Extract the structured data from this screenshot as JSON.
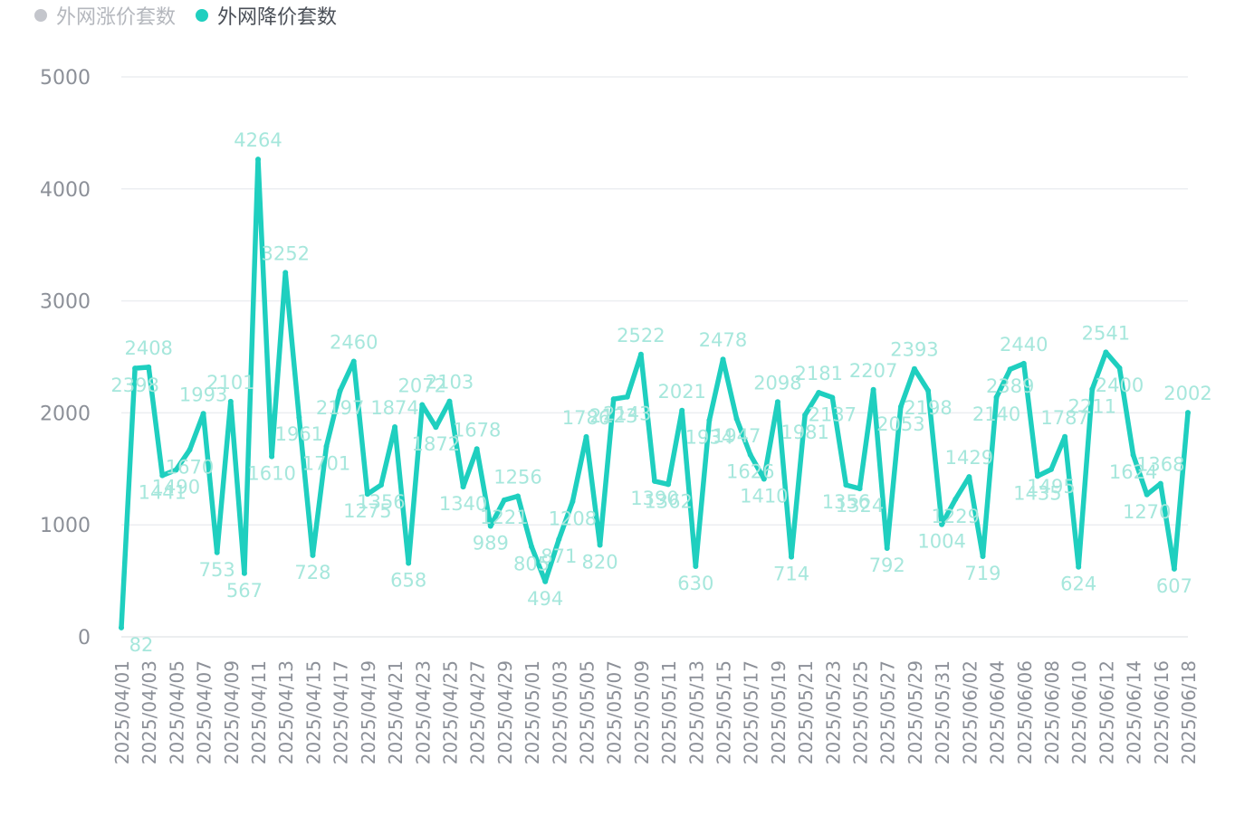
{
  "legend": [
    {
      "label": "外网涨价套数",
      "color": "#c4c6cc",
      "active": false
    },
    {
      "label": "外网降价套数",
      "color": "#1fcfbf",
      "active": true
    }
  ],
  "chart_data": {
    "type": "line",
    "title": "",
    "xlabel": "",
    "ylabel": "",
    "ylim": [
      0,
      5000
    ],
    "yticks": [
      0,
      1000,
      2000,
      3000,
      4000,
      5000
    ],
    "grid": true,
    "legend_position": "top-left",
    "x": [
      "2025/04/01",
      "2025/04/02",
      "2025/04/03",
      "2025/04/04",
      "2025/04/05",
      "2025/04/06",
      "2025/04/07",
      "2025/04/08",
      "2025/04/09",
      "2025/04/10",
      "2025/04/11",
      "2025/04/12",
      "2025/04/13",
      "2025/04/14",
      "2025/04/15",
      "2025/04/16",
      "2025/04/17",
      "2025/04/18",
      "2025/04/19",
      "2025/04/20",
      "2025/04/21",
      "2025/04/22",
      "2025/04/23",
      "2025/04/24",
      "2025/04/25",
      "2025/04/26",
      "2025/04/27",
      "2025/04/28",
      "2025/04/29",
      "2025/04/30",
      "2025/05/01",
      "2025/05/02",
      "2025/05/03",
      "2025/05/04",
      "2025/05/05",
      "2025/05/06",
      "2025/05/07",
      "2025/05/08",
      "2025/05/09",
      "2025/05/10",
      "2025/05/11",
      "2025/05/12",
      "2025/05/13",
      "2025/05/14",
      "2025/05/15",
      "2025/05/16",
      "2025/05/17",
      "2025/05/18",
      "2025/05/19",
      "2025/05/20",
      "2025/05/21",
      "2025/05/22",
      "2025/05/23",
      "2025/05/24",
      "2025/05/25",
      "2025/05/26",
      "2025/05/27",
      "2025/05/28",
      "2025/05/29",
      "2025/05/30",
      "2025/05/31",
      "2025/06/01",
      "2025/06/02",
      "2025/06/03",
      "2025/06/04",
      "2025/06/05",
      "2025/06/06",
      "2025/06/07",
      "2025/06/08",
      "2025/06/09",
      "2025/06/10",
      "2025/06/11",
      "2025/06/12",
      "2025/06/13",
      "2025/06/14",
      "2025/06/15",
      "2025/06/16",
      "2025/06/17",
      "2025/06/18"
    ],
    "xticks_shown": [
      "2025/04/01",
      "2025/04/03",
      "2025/04/05",
      "2025/04/07",
      "2025/04/09",
      "2025/04/11",
      "2025/04/13",
      "2025/04/15",
      "2025/04/17",
      "2025/04/19",
      "2025/04/21",
      "2025/04/23",
      "2025/04/25",
      "2025/04/27",
      "2025/04/29",
      "2025/05/01",
      "2025/05/03",
      "2025/05/05",
      "2025/05/07",
      "2025/05/09",
      "2025/05/11",
      "2025/05/13",
      "2025/05/15",
      "2025/05/17",
      "2025/05/19",
      "2025/05/21",
      "2025/05/23",
      "2025/05/25",
      "2025/05/27",
      "2025/05/29",
      "2025/05/31",
      "2025/06/02",
      "2025/06/04",
      "2025/06/06",
      "2025/06/08",
      "2025/06/10",
      "2025/06/12",
      "2025/06/14",
      "2025/06/16",
      "2025/06/18"
    ],
    "series": [
      {
        "name": "外网降价套数",
        "color": "#1fcfbf",
        "values": [
          82,
          2398,
          2408,
          1441,
          1490,
          1670,
          1993,
          753,
          2101,
          567,
          4264,
          1610,
          3252,
          1961,
          728,
          1701,
          2197,
          2460,
          1275,
          1356,
          1874,
          658,
          2072,
          1872,
          2103,
          1340,
          1678,
          989,
          1221,
          1256,
          805,
          494,
          871,
          1208,
          1786,
          820,
          2123,
          2143,
          2522,
          1390,
          1362,
          2021,
          630,
          1934,
          2478,
          1947,
          1626,
          1410,
          2098,
          714,
          1981,
          2181,
          2137,
          1356,
          1324,
          2207,
          792,
          2053,
          2393,
          2198,
          1004,
          1229,
          1429,
          719,
          2140,
          2389,
          2440,
          1435,
          1495,
          1787,
          624,
          2211,
          2541,
          2400,
          1624,
          1270,
          1368,
          607,
          2002
        ]
      }
    ]
  }
}
